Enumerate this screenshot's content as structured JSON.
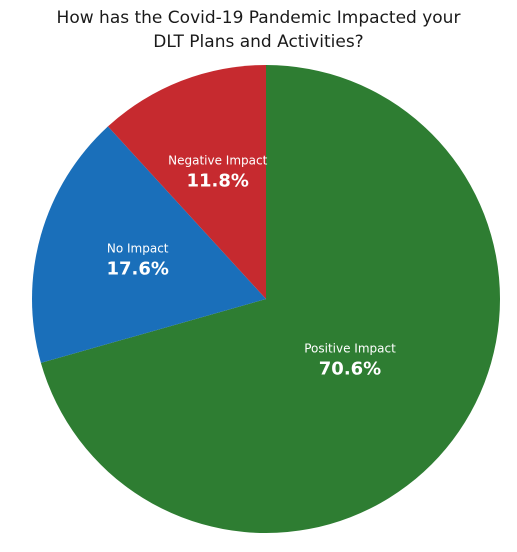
{
  "chart_data": {
    "type": "pie",
    "title_lines": [
      "How has the Covid-19 Pandemic Impacted your",
      "DLT Plans and Activities?"
    ],
    "slices": [
      {
        "name": "Positive Impact",
        "value": 70.6,
        "label": "70.6%",
        "color": "#2e7d32"
      },
      {
        "name": "No Impact",
        "value": 17.6,
        "label": "17.6%",
        "color": "#1a6fba"
      },
      {
        "name": "Negative Impact",
        "value": 11.8,
        "label": "11.8%",
        "color": "#c62a2f"
      }
    ],
    "start": "12 o'clock",
    "direction": "clockwise",
    "legend": "none"
  }
}
